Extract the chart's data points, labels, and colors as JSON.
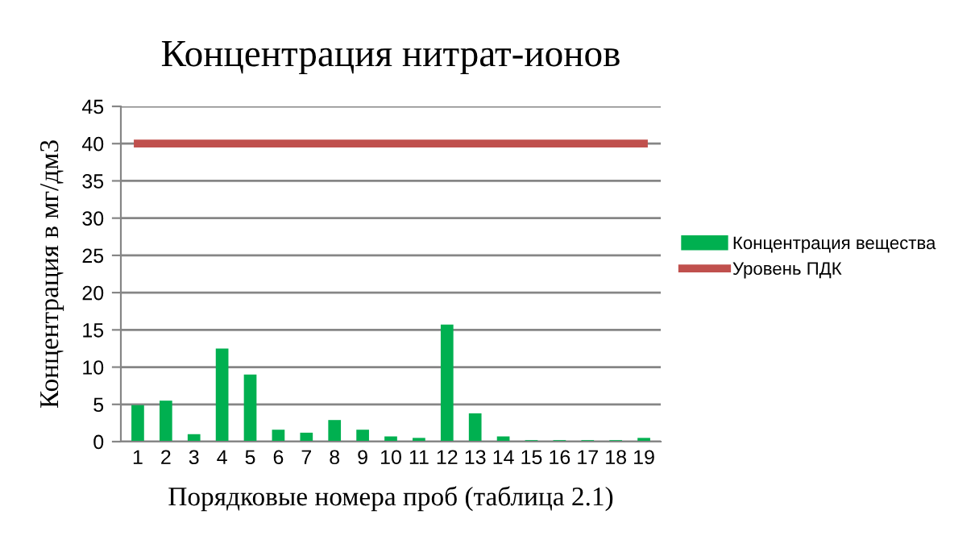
{
  "chart_data": {
    "type": "bar",
    "title": "Концентрация нитрат-ионов",
    "xlabel": "Порядковые номера проб (таблица 2.1)",
    "ylabel": "Концентрация в мг/дм3",
    "categories": [
      "1",
      "2",
      "3",
      "4",
      "5",
      "6",
      "7",
      "8",
      "9",
      "10",
      "11",
      "12",
      "13",
      "14",
      "15",
      "16",
      "17",
      "18",
      "19"
    ],
    "series": [
      {
        "name": "Концентрация вещества",
        "color": "#00b050",
        "values": [
          4.9,
          5.5,
          1.0,
          12.5,
          9.0,
          1.6,
          1.2,
          2.9,
          1.6,
          0.7,
          0.5,
          15.7,
          3.8,
          0.7,
          0.2,
          0.2,
          0.2,
          0.2,
          0.5
        ]
      },
      {
        "name": "Уровень ПДК",
        "type": "line",
        "color": "#c0504d",
        "values": [
          40,
          40,
          40,
          40,
          40,
          40,
          40,
          40,
          40,
          40,
          40,
          40,
          40,
          40,
          40,
          40,
          40,
          40,
          40
        ]
      }
    ],
    "ylim": [
      0,
      45
    ],
    "yticks": [
      0,
      5,
      10,
      15,
      20,
      25,
      30,
      35,
      40,
      45
    ],
    "grid": "y",
    "legend": "right"
  }
}
